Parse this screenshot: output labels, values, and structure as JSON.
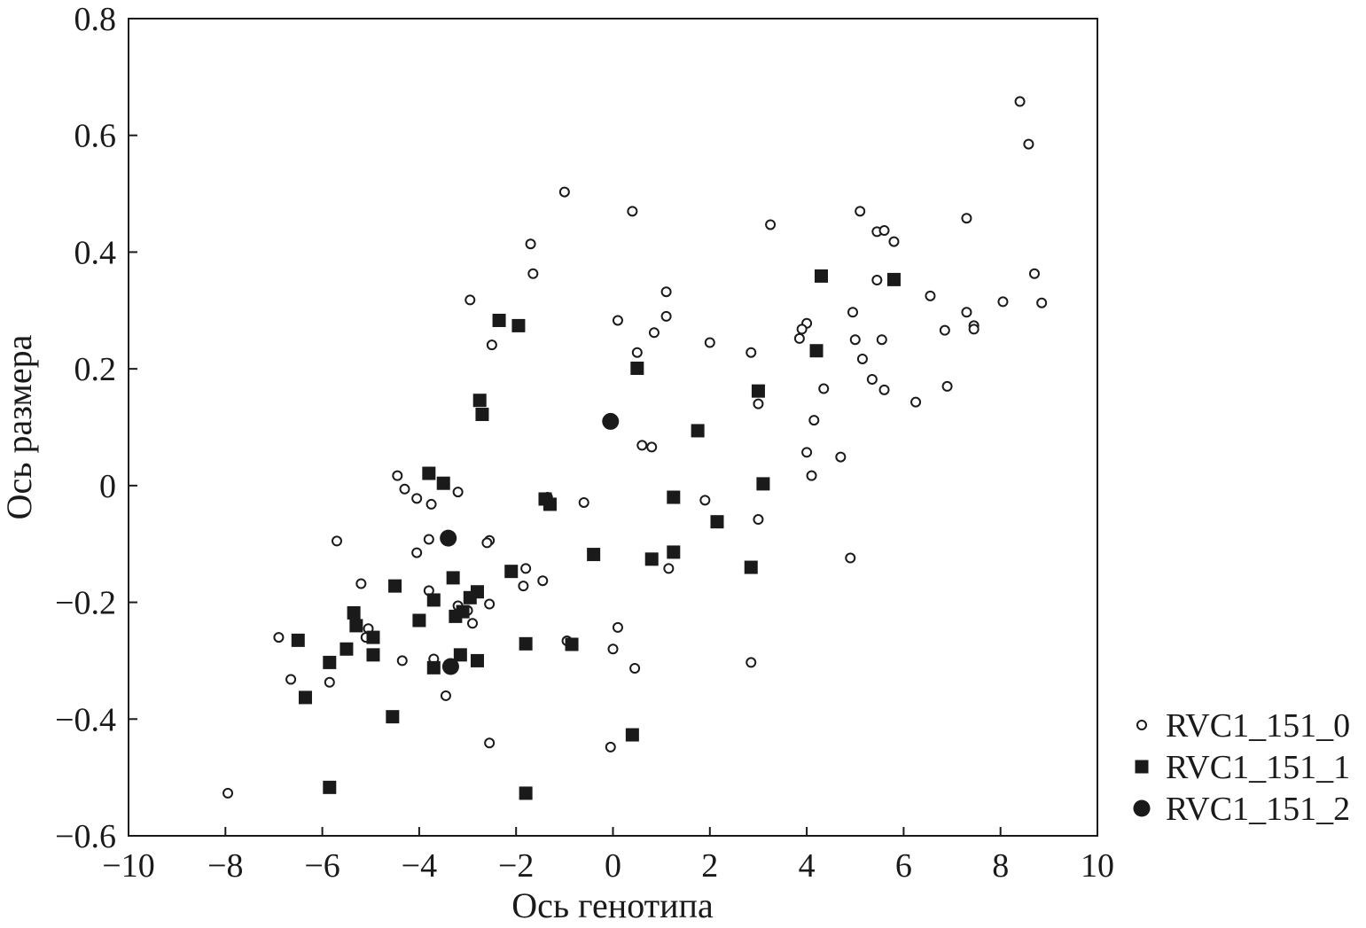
{
  "chart_data": {
    "type": "scatter",
    "title": "",
    "xlabel": "Ось генотипа",
    "ylabel": "Ось размера",
    "xlim": [
      -10,
      10
    ],
    "ylim": [
      -0.6,
      0.8
    ],
    "xticks": [
      -10,
      -8,
      -6,
      -4,
      -2,
      0,
      2,
      4,
      6,
      8,
      10
    ],
    "xtick_labels": [
      "−10",
      "−8",
      "−6",
      "−4",
      "−2",
      "0",
      "2",
      "4",
      "6",
      "8",
      "10"
    ],
    "yticks": [
      -0.6,
      -0.4,
      -0.2,
      0,
      0.2,
      0.4,
      0.6,
      0.8
    ],
    "ytick_labels": [
      "−0.6",
      "−0.4",
      "−0.2",
      "0",
      "0.2",
      "0.4",
      "0.6",
      "0.8"
    ],
    "grid": false,
    "legend_position": "outside-right-bottom",
    "series": [
      {
        "name": "RVC1_151_0",
        "marker": "open-circle",
        "color": "#1a1a1a",
        "points": [
          [
            8.4,
            0.658
          ],
          [
            8.58,
            0.585
          ],
          [
            7.3,
            0.458
          ],
          [
            8.7,
            0.363
          ],
          [
            8.85,
            0.313
          ],
          [
            8.05,
            0.315
          ],
          [
            -1.0,
            0.503
          ],
          [
            0.4,
            0.47
          ],
          [
            5.1,
            0.47
          ],
          [
            5.45,
            0.435
          ],
          [
            5.6,
            0.437
          ],
          [
            5.8,
            0.418
          ],
          [
            3.25,
            0.447
          ],
          [
            -1.7,
            0.414
          ],
          [
            -1.65,
            0.363
          ],
          [
            5.45,
            0.352
          ],
          [
            6.55,
            0.325
          ],
          [
            -2.95,
            0.318
          ],
          [
            1.1,
            0.332
          ],
          [
            1.1,
            0.29
          ],
          [
            4.95,
            0.297
          ],
          [
            7.3,
            0.297
          ],
          [
            0.1,
            0.283
          ],
          [
            4.0,
            0.278
          ],
          [
            3.9,
            0.268
          ],
          [
            3.85,
            0.252
          ],
          [
            6.85,
            0.266
          ],
          [
            7.45,
            0.274
          ],
          [
            7.45,
            0.268
          ],
          [
            0.85,
            0.262
          ],
          [
            5.0,
            0.25
          ],
          [
            5.55,
            0.25
          ],
          [
            2.0,
            0.245
          ],
          [
            -2.5,
            0.241
          ],
          [
            0.5,
            0.228
          ],
          [
            2.85,
            0.228
          ],
          [
            5.15,
            0.217
          ],
          [
            5.35,
            0.182
          ],
          [
            5.6,
            0.164
          ],
          [
            4.35,
            0.166
          ],
          [
            6.9,
            0.17
          ],
          [
            3.0,
            0.14
          ],
          [
            6.25,
            0.143
          ],
          [
            4.15,
            0.112
          ],
          [
            0.6,
            0.069
          ],
          [
            0.8,
            0.066
          ],
          [
            4.0,
            0.057
          ],
          [
            4.7,
            0.049
          ],
          [
            4.1,
            0.017
          ],
          [
            -4.45,
            0.017
          ],
          [
            -4.3,
            -0.006
          ],
          [
            -4.05,
            -0.022
          ],
          [
            -3.75,
            -0.032
          ],
          [
            -3.2,
            -0.011
          ],
          [
            -1.35,
            -0.02
          ],
          [
            -0.6,
            -0.029
          ],
          [
            1.9,
            -0.025
          ],
          [
            3.0,
            -0.058
          ],
          [
            -5.7,
            -0.095
          ],
          [
            -3.8,
            -0.092
          ],
          [
            -2.55,
            -0.094
          ],
          [
            -2.6,
            -0.098
          ],
          [
            -4.05,
            -0.115
          ],
          [
            4.9,
            -0.124
          ],
          [
            -1.8,
            -0.142
          ],
          [
            1.15,
            -0.142
          ],
          [
            -5.2,
            -0.168
          ],
          [
            -1.45,
            -0.163
          ],
          [
            -1.85,
            -0.172
          ],
          [
            -3.8,
            -0.18
          ],
          [
            -2.55,
            -0.203
          ],
          [
            -3.2,
            -0.206
          ],
          [
            -3.0,
            -0.214
          ],
          [
            -5.05,
            -0.245
          ],
          [
            -2.9,
            -0.236
          ],
          [
            -6.9,
            -0.26
          ],
          [
            -5.1,
            -0.26
          ],
          [
            0.1,
            -0.243
          ],
          [
            -0.95,
            -0.266
          ],
          [
            0.0,
            -0.28
          ],
          [
            -4.35,
            -0.3
          ],
          [
            -3.7,
            -0.297
          ],
          [
            2.85,
            -0.303
          ],
          [
            0.45,
            -0.313
          ],
          [
            -6.65,
            -0.332
          ],
          [
            -5.85,
            -0.337
          ],
          [
            -3.45,
            -0.36
          ],
          [
            -2.55,
            -0.441
          ],
          [
            -0.05,
            -0.448
          ],
          [
            -7.95,
            -0.527
          ]
        ]
      },
      {
        "name": "RVC1_151_1",
        "marker": "filled-square",
        "color": "#1a1a1a",
        "points": [
          [
            4.3,
            0.359
          ],
          [
            5.8,
            0.353
          ],
          [
            -2.35,
            0.283
          ],
          [
            -1.95,
            0.274
          ],
          [
            4.2,
            0.231
          ],
          [
            0.5,
            0.201
          ],
          [
            3.0,
            0.162
          ],
          [
            -2.75,
            0.146
          ],
          [
            -2.7,
            0.122
          ],
          [
            1.75,
            0.094
          ],
          [
            -3.8,
            0.021
          ],
          [
            -3.5,
            0.004
          ],
          [
            3.1,
            0.003
          ],
          [
            -1.4,
            -0.023
          ],
          [
            1.25,
            -0.02
          ],
          [
            -1.3,
            -0.032
          ],
          [
            2.15,
            -0.062
          ],
          [
            -0.4,
            -0.118
          ],
          [
            1.25,
            -0.114
          ],
          [
            0.8,
            -0.126
          ],
          [
            -2.1,
            -0.147
          ],
          [
            2.85,
            -0.14
          ],
          [
            -3.3,
            -0.158
          ],
          [
            -4.5,
            -0.172
          ],
          [
            -2.8,
            -0.182
          ],
          [
            -2.95,
            -0.192
          ],
          [
            -3.7,
            -0.196
          ],
          [
            -5.35,
            -0.218
          ],
          [
            -3.1,
            -0.216
          ],
          [
            -3.25,
            -0.224
          ],
          [
            -4.0,
            -0.231
          ],
          [
            -5.3,
            -0.24
          ],
          [
            -4.95,
            -0.26
          ],
          [
            -6.5,
            -0.265
          ],
          [
            -1.8,
            -0.271
          ],
          [
            -0.85,
            -0.272
          ],
          [
            -5.5,
            -0.28
          ],
          [
            -4.95,
            -0.29
          ],
          [
            -3.15,
            -0.29
          ],
          [
            -5.85,
            -0.303
          ],
          [
            -2.8,
            -0.3
          ],
          [
            -3.7,
            -0.312
          ],
          [
            -6.35,
            -0.363
          ],
          [
            -4.55,
            -0.396
          ],
          [
            0.4,
            -0.427
          ],
          [
            -5.85,
            -0.517
          ],
          [
            -1.8,
            -0.527
          ]
        ]
      },
      {
        "name": "RVC1_151_2",
        "marker": "filled-circle",
        "color": "#1a1a1a",
        "points": [
          [
            -0.05,
            0.11
          ],
          [
            -3.4,
            -0.09
          ],
          [
            -3.35,
            -0.31
          ]
        ]
      }
    ]
  }
}
